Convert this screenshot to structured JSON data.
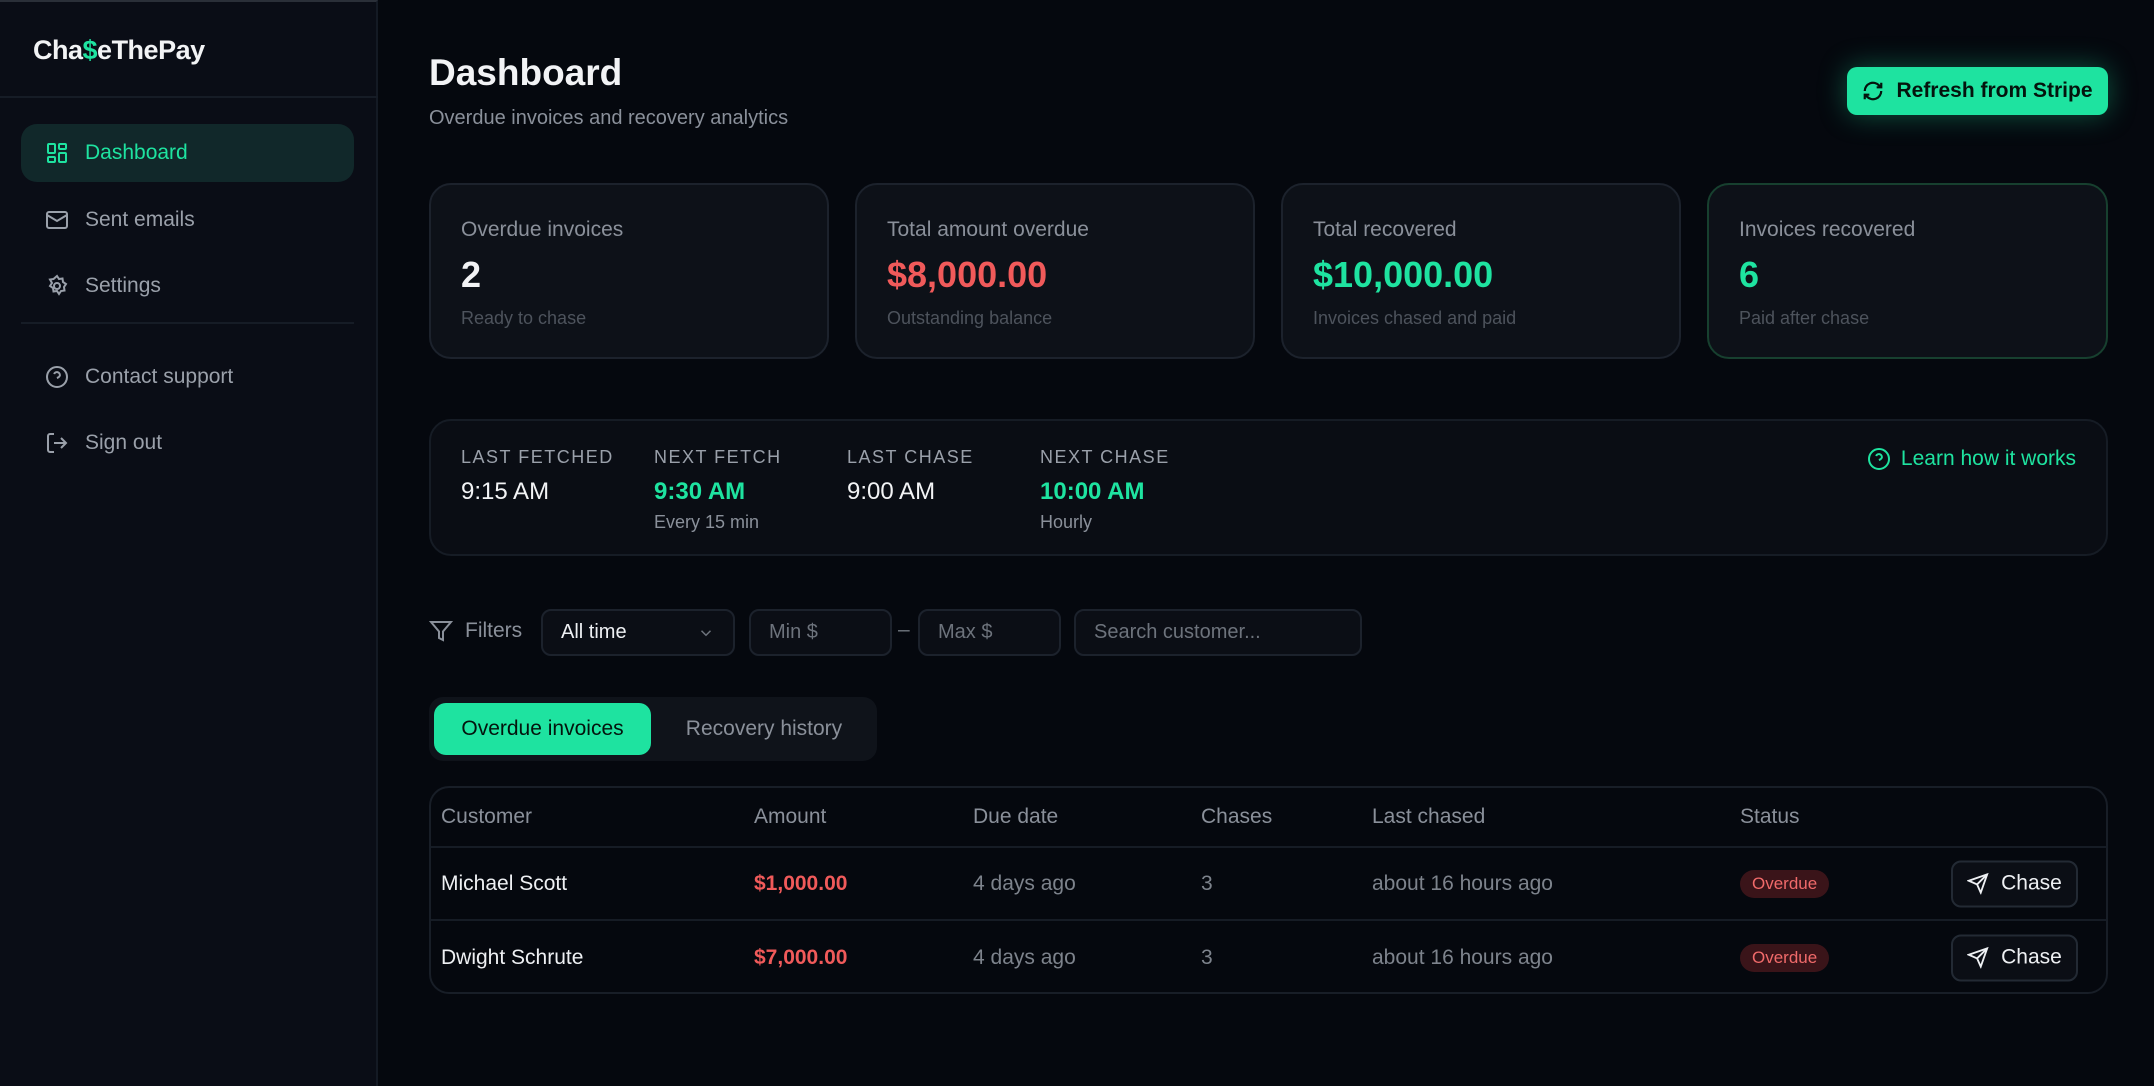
{
  "brand": {
    "prefix": "Cha",
    "dollar": "$",
    "suffix": "eThePay",
    "accent": "#1ee3a0"
  },
  "sidebar": {
    "items": [
      {
        "label": "Dashboard",
        "icon": "layout-grid-icon",
        "active": true
      },
      {
        "label": "Sent emails",
        "icon": "mail-icon"
      },
      {
        "label": "Settings",
        "icon": "gear-icon"
      }
    ],
    "footer": [
      {
        "label": "Contact support",
        "icon": "help-circle-icon"
      },
      {
        "label": "Sign out",
        "icon": "log-out-icon"
      }
    ]
  },
  "header": {
    "title": "Dashboard",
    "subtitle": "Overdue invoices and recovery analytics",
    "refresh_label": "Refresh from Stripe"
  },
  "stats": [
    {
      "label": "Overdue invoices",
      "value": "2",
      "sub": "Ready to chase",
      "color": "#f2f3f5"
    },
    {
      "label": "Total amount overdue",
      "value": "$8,000.00",
      "sub": "Outstanding balance",
      "color": "#f05a5a"
    },
    {
      "label": "Total recovered",
      "value": "$10,000.00",
      "sub": "Invoices chased and paid",
      "color": "#1ee3a0"
    },
    {
      "label": "Invoices recovered",
      "value": "6",
      "sub": "Paid after chase",
      "color": "#1ee3a0"
    }
  ],
  "schedule": [
    {
      "label": "LAST FETCHED",
      "value": "9:15 AM",
      "note": ""
    },
    {
      "label": "NEXT FETCH",
      "value": "9:30 AM",
      "note": "Every 15 min"
    },
    {
      "label": "LAST CHASE",
      "value": "9:00 AM",
      "note": ""
    },
    {
      "label": "NEXT CHASE",
      "value": "10:00 AM",
      "note": "Hourly"
    }
  ],
  "learn_label": "Learn how it works",
  "filters": {
    "label": "Filters",
    "period": "All time",
    "min_placeholder": "Min $",
    "separator": "–",
    "max_placeholder": "Max $",
    "search_placeholder": "Search customer..."
  },
  "tabs": [
    {
      "label": "Overdue invoices",
      "active": true
    },
    {
      "label": "Recovery history"
    }
  ],
  "table": {
    "columns": [
      "Customer",
      "Amount",
      "Due date",
      "Chases",
      "Last chased",
      "Status"
    ],
    "rows": [
      {
        "customer": "Michael Scott",
        "amount": "$1,000.00",
        "due": "4 days ago",
        "chases": "3",
        "last": "about 16 hours ago",
        "status": "Overdue",
        "action": "Chase"
      },
      {
        "customer": "Dwight Schrute",
        "amount": "$7,000.00",
        "due": "4 days ago",
        "chases": "3",
        "last": "about 16 hours ago",
        "status": "Overdue",
        "action": "Chase"
      }
    ]
  }
}
